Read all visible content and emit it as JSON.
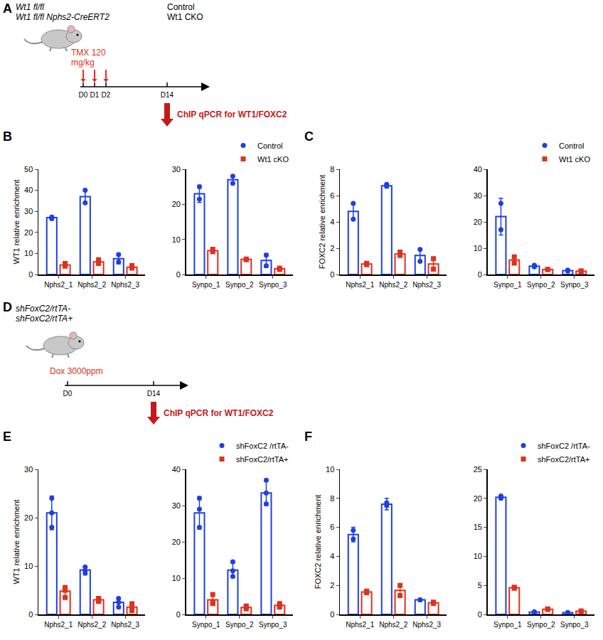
{
  "schematics": [
    {
      "letter": "A",
      "genotypes": [
        "Wt1 fl/fl",
        "Wt1 fl/fl Nphs2-CreERT2"
      ],
      "groups": [
        "Control",
        "Wt1 CKO"
      ],
      "treatment": [
        "TMX 120",
        "mg/kg"
      ],
      "days": [
        "D0",
        "D1",
        "D2",
        "D14"
      ],
      "assay": "ChIP qPCR for WT1/FOXC2"
    },
    {
      "letter": "D",
      "genotypes": [
        "shFoxC2/rtTA-",
        "shFoxC2/rtTA+"
      ],
      "groups": [],
      "treatment": [
        "Dox 3000ppm"
      ],
      "days": [
        "D0",
        "D14"
      ],
      "assay": "ChIP qPCR for WT1/FOXC2"
    }
  ],
  "chart_data": [
    {
      "panel": "B",
      "type": "bar",
      "y_label": "WT1 relative enrichment",
      "categories": [
        "Nphs2_1",
        "Nphs2_2",
        "Nphs2_3"
      ],
      "ylim": [
        0,
        50
      ],
      "yticks": [
        0,
        10,
        20,
        30,
        40,
        50
      ],
      "grid": false,
      "series": [
        {
          "name": "Control",
          "color": "#1f3fe0",
          "marker": "circle",
          "values": [
            27,
            37,
            7.5
          ],
          "error": [
            0.5,
            3.5,
            2.5
          ],
          "points": [
            [
              26.5,
              27.3
            ],
            [
              34,
              40
            ],
            [
              6,
              9.5
            ]
          ]
        },
        {
          "name": "Wt1 cKO",
          "color": "#e0301e",
          "marker": "square",
          "values": [
            4.5,
            6,
            3.5
          ],
          "error": [
            0.6,
            1,
            0.6
          ],
          "points": [
            [
              4,
              5.2
            ],
            [
              5.2,
              7
            ],
            [
              3,
              4.2
            ]
          ]
        }
      ]
    },
    {
      "panel": "B",
      "type": "bar",
      "categories": [
        "Synpo_1",
        "Synpo_2",
        "Synpo_3"
      ],
      "ylim": [
        0,
        30
      ],
      "yticks": [
        0,
        10,
        20,
        30
      ],
      "grid": false,
      "legend": "top right",
      "series": [
        {
          "name": "Control",
          "color": "#1f3fe0",
          "marker": "circle",
          "values": [
            23,
            27,
            4
          ],
          "error": [
            2.5,
            1,
            2
          ],
          "points": [
            [
              21.5,
              25
            ],
            [
              26,
              28
            ],
            [
              2.5,
              5.5
            ]
          ]
        },
        {
          "name": "Wt1 cKO",
          "color": "#e0301e",
          "marker": "square",
          "values": [
            6.8,
            4.3,
            1.6
          ],
          "error": [
            0.4,
            0.2,
            0.2
          ],
          "points": [
            [
              6.5,
              7.2
            ],
            [
              4.2,
              4.4
            ],
            [
              1.4,
              1.8
            ]
          ]
        }
      ]
    },
    {
      "panel": "C",
      "type": "bar",
      "y_label": "FOXC2 relative enrichment",
      "categories": [
        "Nphs2_1",
        "Nphs2_2",
        "Nphs2_3"
      ],
      "ylim": [
        0,
        8
      ],
      "yticks": [
        0,
        2,
        4,
        6,
        8
      ],
      "grid": false,
      "series": [
        {
          "name": "Control",
          "color": "#1f3fe0",
          "marker": "circle",
          "values": [
            4.8,
            6.75,
            1.45
          ],
          "error": [
            0.6,
            0.15,
            0.45
          ],
          "points": [
            [
              4.2,
              5.4
            ],
            [
              6.7,
              6.85
            ],
            [
              1.0,
              1.9
            ]
          ]
        },
        {
          "name": "Wt1 cKO",
          "color": "#e0301e",
          "marker": "square",
          "values": [
            0.8,
            1.55,
            0.8
          ],
          "error": [
            0.1,
            0.15,
            0.4
          ],
          "points": [
            [
              0.75,
              0.85
            ],
            [
              1.45,
              1.7
            ],
            [
              0.4,
              1.2
            ]
          ]
        }
      ]
    },
    {
      "panel": "C",
      "type": "bar",
      "categories": [
        "Synpo_1",
        "Synpo_2",
        "Synpo_3"
      ],
      "ylim": [
        0,
        40
      ],
      "yticks": [
        0,
        10,
        20,
        30,
        40
      ],
      "grid": false,
      "legend": "top right",
      "series": [
        {
          "name": "Control",
          "color": "#1f3fe0",
          "marker": "circle",
          "values": [
            22,
            3.2,
            1.5
          ],
          "error": [
            7,
            0.5,
            0.3
          ],
          "points": [
            [
              17,
              27
            ],
            [
              2.9,
              3.5
            ],
            [
              1.3,
              1.7
            ]
          ]
        },
        {
          "name": "Wt1 cKO",
          "color": "#e0301e",
          "marker": "square",
          "values": [
            5.5,
            1.9,
            1.3
          ],
          "error": [
            1.5,
            0.2,
            0.2
          ],
          "points": [
            [
              4.3,
              6.7
            ],
            [
              1.9,
              1.9
            ],
            [
              1.2,
              1.4
            ]
          ]
        }
      ]
    },
    {
      "panel": "E",
      "type": "bar",
      "y_label": "WT1 relative enrichment",
      "categories": [
        "Nphs2_1",
        "Nphs2_2",
        "Nphs2_3"
      ],
      "ylim": [
        0,
        30
      ],
      "yticks": [
        0,
        10,
        20,
        30
      ],
      "grid": false,
      "series": [
        {
          "name": "shFoxC2 /rtTA-",
          "color": "#1f3fe0",
          "marker": "circle",
          "values": [
            21,
            9.2,
            2.5
          ],
          "error": [
            3.5,
            0.6,
            0.8
          ],
          "points": [
            [
              18,
              21,
              24
            ],
            [
              8.5,
              9,
              9.8
            ],
            [
              1.5,
              2.5,
              3.3
            ]
          ]
        },
        {
          "name": "shFoxC2/rtTA+",
          "color": "#e0301e",
          "marker": "square",
          "values": [
            4.8,
            3,
            1.5
          ],
          "error": [
            1.2,
            0.4,
            0.8
          ],
          "points": [
            [
              3.5,
              5,
              5.5
            ],
            [
              2.7,
              3,
              3.3
            ],
            [
              0.8,
              1.5,
              2.2
            ]
          ]
        }
      ]
    },
    {
      "panel": "E",
      "type": "bar",
      "categories": [
        "Synpo_1",
        "Synpo_2",
        "Synpo_3"
      ],
      "ylim": [
        0,
        40
      ],
      "yticks": [
        0,
        10,
        20,
        30,
        40
      ],
      "grid": false,
      "legend": "top right",
      "series": [
        {
          "name": "shFoxC2 /rtTA-",
          "color": "#1f3fe0",
          "marker": "circle",
          "values": [
            28,
            12.2,
            33.5
          ],
          "error": [
            4.5,
            2,
            3.5
          ],
          "points": [
            [
              24,
              29,
              32
            ],
            [
              10.5,
              12,
              14.5
            ],
            [
              30.5,
              33.5,
              37
            ]
          ]
        },
        {
          "name": "shFoxC2/rtTA+",
          "color": "#e0301e",
          "marker": "square",
          "values": [
            4,
            1.9,
            2.5
          ],
          "error": [
            1.5,
            0.5,
            0.8
          ],
          "points": [
            [
              3,
              3.5,
              5.5
            ],
            [
              1.5,
              1.9,
              2.3
            ],
            [
              2,
              2.5,
              3
            ]
          ]
        }
      ]
    },
    {
      "panel": "F",
      "type": "bar",
      "y_label": "FOXC2 relative enrichment",
      "categories": [
        "Nphs2_1",
        "Nphs2_2",
        "Nphs2_3"
      ],
      "ylim": [
        0,
        10
      ],
      "yticks": [
        0,
        2,
        4,
        6,
        8,
        10
      ],
      "grid": false,
      "series": [
        {
          "name": "shFoxC2 /rtTA-",
          "color": "#1f3fe0",
          "marker": "circle",
          "values": [
            5.5,
            7.6,
            1.0
          ],
          "error": [
            0.5,
            0.4,
            0.05
          ],
          "points": [
            [
              5.2,
              5.8
            ],
            [
              7.5,
              7.7
            ],
            [
              1.0,
              1.0
            ]
          ]
        },
        {
          "name": "shFoxC2/rtTA+",
          "color": "#e0301e",
          "marker": "square",
          "values": [
            1.55,
            1.65,
            0.8
          ],
          "error": [
            0.1,
            0.3,
            0.05
          ],
          "points": [
            [
              1.5,
              1.6
            ],
            [
              1.3,
              2.0
            ],
            [
              0.75,
              0.85
            ]
          ]
        }
      ]
    },
    {
      "panel": "F",
      "type": "bar",
      "categories": [
        "Synpo_1",
        "Synpo_2",
        "Synpo_3"
      ],
      "ylim": [
        0,
        25
      ],
      "yticks": [
        0,
        5,
        10,
        15,
        20,
        25
      ],
      "grid": false,
      "legend": "top right",
      "series": [
        {
          "name": "shFoxC2 /rtTA-",
          "color": "#1f3fe0",
          "marker": "circle",
          "values": [
            20.2,
            0.4,
            0.3
          ],
          "error": [
            0.3,
            0.1,
            0.1
          ],
          "points": [
            [
              20,
              20.4
            ],
            [
              0.35,
              0.45
            ],
            [
              0.25,
              0.35
            ]
          ]
        },
        {
          "name": "shFoxC2/rtTA+",
          "color": "#e0301e",
          "marker": "square",
          "values": [
            4.6,
            0.9,
            0.55
          ],
          "error": [
            0.2,
            0.1,
            0.1
          ],
          "points": [
            [
              4.5,
              4.7
            ],
            [
              0.85,
              0.95
            ],
            [
              0.5,
              0.6
            ]
          ]
        }
      ]
    }
  ]
}
